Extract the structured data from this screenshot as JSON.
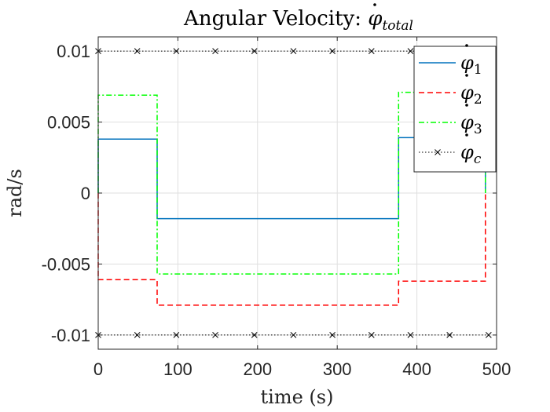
{
  "chart_data": {
    "type": "line",
    "title_main": "Angular Velocity: ",
    "title_symbol": "φ",
    "title_sub": "total",
    "xlabel": "time (s)",
    "ylabel": "rad/s",
    "xlim": [
      0,
      500
    ],
    "ylim": [
      -0.011,
      0.011
    ],
    "xticks": [
      0,
      100,
      200,
      300,
      400,
      500
    ],
    "xtick_labels": [
      "0",
      "100",
      "200",
      "300",
      "400",
      "500"
    ],
    "yticks": [
      -0.01,
      -0.005,
      0,
      0.005,
      0.01
    ],
    "ytick_labels": [
      "-0.01",
      "-0.005",
      "0",
      "0.005",
      "0.01"
    ],
    "grid": true,
    "legend_position": "top-right",
    "series": [
      {
        "name": "φ",
        "sub": "1",
        "color": "#0072BD",
        "dash": "solid",
        "points": [
          [
            0,
            0
          ],
          [
            0,
            0.0038
          ],
          [
            74,
            0.0038
          ],
          [
            74,
            -0.0018
          ],
          [
            377,
            -0.0018
          ],
          [
            377,
            0.0039
          ],
          [
            486,
            0.0039
          ],
          [
            486,
            0
          ]
        ]
      },
      {
        "name": "φ",
        "sub": "2",
        "color": "#FF0000",
        "dash": "dashed",
        "points": [
          [
            0,
            0
          ],
          [
            0,
            -0.0061
          ],
          [
            74,
            -0.0061
          ],
          [
            74,
            -0.0079
          ],
          [
            377,
            -0.0079
          ],
          [
            377,
            -0.0062
          ],
          [
            486,
            -0.0062
          ],
          [
            486,
            0
          ]
        ]
      },
      {
        "name": "φ",
        "sub": "3",
        "color": "#00FF00",
        "dash": "dashdot",
        "points": [
          [
            0,
            0
          ],
          [
            0,
            0.0069
          ],
          [
            74,
            0.0069
          ],
          [
            74,
            -0.0057
          ],
          [
            377,
            -0.0057
          ],
          [
            377,
            0.0071
          ],
          [
            486,
            0.0071
          ],
          [
            486,
            0
          ]
        ]
      },
      {
        "name": "φ",
        "sub": "c",
        "color": "#000000",
        "dash": "dotted",
        "marker": "x",
        "upper_points": [
          [
            0,
            0.01
          ],
          [
            49,
            0.01
          ],
          [
            98,
            0.01
          ],
          [
            147,
            0.01
          ],
          [
            196,
            0.01
          ],
          [
            245,
            0.01
          ],
          [
            294,
            0.01
          ],
          [
            343,
            0.01
          ],
          [
            392,
            0.01
          ],
          [
            441,
            0.01
          ],
          [
            490,
            0.01
          ]
        ],
        "lower_points": [
          [
            0,
            -0.01
          ],
          [
            49,
            -0.01
          ],
          [
            98,
            -0.01
          ],
          [
            147,
            -0.01
          ],
          [
            196,
            -0.01
          ],
          [
            245,
            -0.01
          ],
          [
            294,
            -0.01
          ],
          [
            343,
            -0.01
          ],
          [
            392,
            -0.01
          ],
          [
            441,
            -0.01
          ],
          [
            490,
            -0.01
          ]
        ]
      }
    ]
  }
}
